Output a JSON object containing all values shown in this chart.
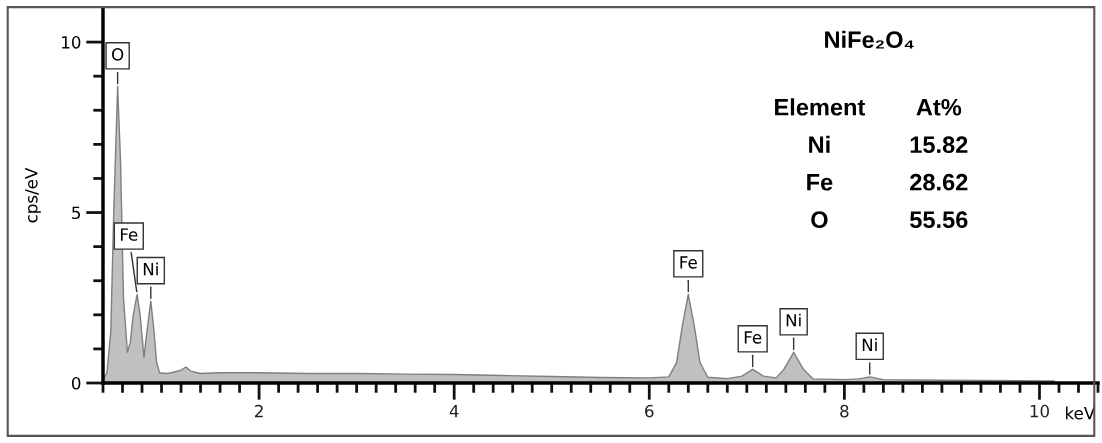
{
  "chart_data": {
    "type": "area",
    "xlabel": "keV",
    "ylabel": "cps/eV",
    "x": [
      0.4,
      0.44,
      0.48,
      0.51,
      0.55,
      0.58,
      0.61,
      0.65,
      0.68,
      0.71,
      0.75,
      0.78,
      0.82,
      0.85,
      0.89,
      0.92,
      0.95,
      0.98,
      1.05,
      1.1,
      1.2,
      1.25,
      1.3,
      1.4,
      1.6,
      2.0,
      2.5,
      3.0,
      3.5,
      4.0,
      4.5,
      5.0,
      5.5,
      6.0,
      6.2,
      6.28,
      6.34,
      6.4,
      6.46,
      6.52,
      6.6,
      6.8,
      6.95,
      7.06,
      7.17,
      7.3,
      7.38,
      7.48,
      7.58,
      7.68,
      8.0,
      8.15,
      8.26,
      8.4,
      9.0,
      10.15
    ],
    "series": [
      {
        "color": "#c0c0c0",
        "values": [
          0.1,
          0.3,
          1.5,
          5.0,
          8.7,
          6.5,
          2.5,
          0.9,
          1.2,
          2.0,
          2.6,
          2.0,
          0.75,
          1.5,
          2.4,
          1.6,
          0.6,
          0.3,
          0.28,
          0.3,
          0.38,
          0.47,
          0.35,
          0.28,
          0.3,
          0.3,
          0.28,
          0.28,
          0.26,
          0.25,
          0.22,
          0.19,
          0.16,
          0.15,
          0.18,
          0.6,
          1.7,
          2.6,
          1.7,
          0.6,
          0.17,
          0.13,
          0.2,
          0.4,
          0.2,
          0.15,
          0.4,
          0.9,
          0.4,
          0.12,
          0.1,
          0.12,
          0.18,
          0.1,
          0.08,
          0.06
        ]
      }
    ],
    "xlim": [
      0.4,
      10.6
    ],
    "ylim": [
      0,
      11
    ],
    "xticks": [
      {
        "value": 0.4,
        "label": null
      },
      {
        "value": 0.6,
        "label": null
      },
      {
        "value": 0.8,
        "label": null
      },
      {
        "value": 1.0,
        "label": null
      },
      {
        "value": 1.2,
        "label": null
      },
      {
        "value": 1.4,
        "label": null
      },
      {
        "value": 1.6,
        "label": null
      },
      {
        "value": 1.8,
        "label": null
      },
      2,
      {
        "value": 2.2,
        "label": null
      },
      {
        "value": 2.4,
        "label": null
      },
      {
        "value": 2.6,
        "label": null
      },
      {
        "value": 2.8,
        "label": null
      },
      {
        "value": 3.0,
        "label": null
      },
      {
        "value": 3.2,
        "label": null
      },
      {
        "value": 3.4,
        "label": null
      },
      {
        "value": 3.6,
        "label": null
      },
      {
        "value": 3.8,
        "label": null
      },
      4,
      {
        "value": 4.2,
        "label": null
      },
      {
        "value": 4.4,
        "label": null
      },
      {
        "value": 4.6,
        "label": null
      },
      {
        "value": 4.8,
        "label": null
      },
      {
        "value": 5.0,
        "label": null
      },
      {
        "value": 5.2,
        "label": null
      },
      {
        "value": 5.4,
        "label": null
      },
      {
        "value": 5.6,
        "label": null
      },
      {
        "value": 5.8,
        "label": null
      },
      6,
      {
        "value": 6.2,
        "label": null
      },
      {
        "value": 6.4,
        "label": null
      },
      {
        "value": 6.6,
        "label": null
      },
      {
        "value": 6.8,
        "label": null
      },
      {
        "value": 7.0,
        "label": null
      },
      {
        "value": 7.2,
        "label": null
      },
      {
        "value": 7.4,
        "label": null
      },
      {
        "value": 7.6,
        "label": null
      },
      {
        "value": 7.8,
        "label": null
      },
      8,
      {
        "value": 8.2,
        "label": null
      },
      {
        "value": 8.4,
        "label": null
      },
      {
        "value": 8.6,
        "label": null
      },
      {
        "value": 8.8,
        "label": null
      },
      {
        "value": 9.0,
        "label": null
      },
      {
        "value": 9.2,
        "label": null
      },
      {
        "value": 9.4,
        "label": null
      },
      {
        "value": 9.6,
        "label": null
      },
      {
        "value": 9.8,
        "label": null
      },
      10,
      {
        "value": 10.2,
        "label": null
      },
      {
        "value": 10.4,
        "label": null
      },
      {
        "value": 10.6,
        "label": null
      }
    ],
    "yticks": [
      0,
      {
        "value": 1,
        "label": null
      },
      {
        "value": 2,
        "label": null
      },
      {
        "value": 3,
        "label": null
      },
      {
        "value": 4,
        "label": null
      },
      5,
      {
        "value": 6,
        "label": null
      },
      {
        "value": 7,
        "label": null
      },
      {
        "value": 8,
        "label": null
      },
      {
        "value": 9,
        "label": null
      },
      10
    ],
    "grid": false,
    "annotations": [
      {
        "text": "O",
        "x": 0.55,
        "y": 8.7
      },
      {
        "text": "Fe",
        "x": 0.75,
        "y": 2.6
      },
      {
        "text": "Ni",
        "x": 0.89,
        "y": 2.4
      },
      {
        "text": "Fe",
        "x": 6.4,
        "y": 2.6
      },
      {
        "text": "Fe",
        "x": 7.06,
        "y": 0.4
      },
      {
        "text": "Ni",
        "x": 7.48,
        "y": 0.9
      },
      {
        "text": "Ni",
        "x": 8.26,
        "y": 0.18
      },
      "NiFe₂O₄",
      "Element",
      "At%",
      "Ni",
      "15.82",
      "Fe",
      "28.62",
      "O",
      "55.56"
    ]
  }
}
